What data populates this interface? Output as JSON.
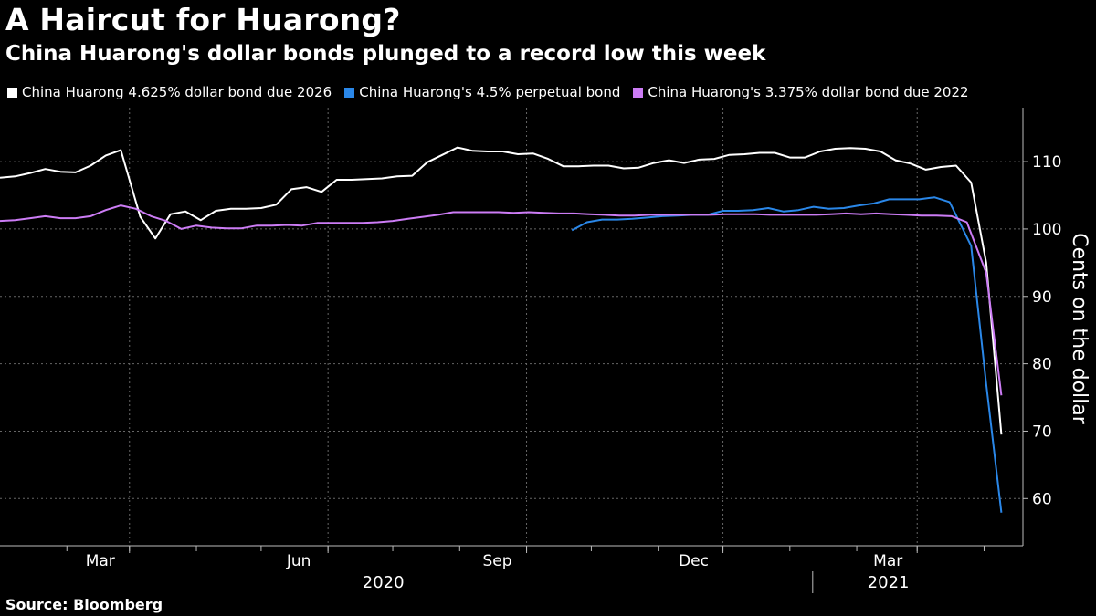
{
  "title": "A Haircut for Huarong?",
  "subtitle": "China Huarong's dollar bonds plunged to a record low this week",
  "source": "Source: Bloomberg",
  "chart_data": {
    "type": "line",
    "ylabel": "Cents on the dollar",
    "ylim": [
      53,
      118
    ],
    "yticks": [
      60,
      70,
      80,
      90,
      100,
      110
    ],
    "xlim": [
      "2020-01-01",
      "2021-04-19"
    ],
    "grid": true,
    "legend_position": "top-left",
    "x_ticks": [
      {
        "label": "Mar",
        "date": "2020-03-01"
      },
      {
        "label": "Jun",
        "date": "2020-06-01"
      },
      {
        "label": "Sep",
        "date": "2020-09-01"
      },
      {
        "label": "Dec",
        "date": "2020-12-01"
      },
      {
        "label": "Mar",
        "date": "2021-03-01"
      }
    ],
    "year_labels": [
      {
        "label": "2020",
        "date": "2020-06-30"
      },
      {
        "label": "2021",
        "date": "2021-02-19"
      }
    ],
    "series": [
      {
        "name": "China Huarong 4.625% dollar bond due 2026",
        "color": "#ffffff",
        "points": [
          [
            "2020-01-01",
            107.6
          ],
          [
            "2020-01-08",
            107.8
          ],
          [
            "2020-01-15",
            108.3
          ],
          [
            "2020-01-22",
            108.9
          ],
          [
            "2020-01-29",
            108.5
          ],
          [
            "2020-02-05",
            108.4
          ],
          [
            "2020-02-12",
            109.4
          ],
          [
            "2020-02-19",
            110.9
          ],
          [
            "2020-02-26",
            111.7
          ],
          [
            "2020-03-06",
            101.8
          ],
          [
            "2020-03-13",
            98.6
          ],
          [
            "2020-03-20",
            102.2
          ],
          [
            "2020-03-27",
            102.6
          ],
          [
            "2020-04-03",
            101.3
          ],
          [
            "2020-04-10",
            102.7
          ],
          [
            "2020-04-17",
            103.0
          ],
          [
            "2020-04-24",
            103.0
          ],
          [
            "2020-05-01",
            103.1
          ],
          [
            "2020-05-08",
            103.6
          ],
          [
            "2020-05-15",
            105.9
          ],
          [
            "2020-05-22",
            106.2
          ],
          [
            "2020-05-29",
            105.5
          ],
          [
            "2020-06-05",
            107.3
          ],
          [
            "2020-06-12",
            107.3
          ],
          [
            "2020-06-19",
            107.4
          ],
          [
            "2020-06-26",
            107.5
          ],
          [
            "2020-07-03",
            107.8
          ],
          [
            "2020-07-10",
            107.9
          ],
          [
            "2020-07-17",
            109.9
          ],
          [
            "2020-07-24",
            111.0
          ],
          [
            "2020-07-31",
            112.1
          ],
          [
            "2020-08-07",
            111.6
          ],
          [
            "2020-08-14",
            111.5
          ],
          [
            "2020-08-21",
            111.5
          ],
          [
            "2020-08-28",
            111.1
          ],
          [
            "2020-09-04",
            111.2
          ],
          [
            "2020-09-11",
            110.4
          ],
          [
            "2020-09-18",
            109.3
          ],
          [
            "2020-09-25",
            109.3
          ],
          [
            "2020-10-02",
            109.4
          ],
          [
            "2020-10-09",
            109.4
          ],
          [
            "2020-10-16",
            109.0
          ],
          [
            "2020-10-23",
            109.1
          ],
          [
            "2020-10-30",
            109.8
          ],
          [
            "2020-11-06",
            110.2
          ],
          [
            "2020-11-13",
            109.8
          ],
          [
            "2020-11-20",
            110.3
          ],
          [
            "2020-11-27",
            110.4
          ],
          [
            "2020-12-04",
            111.0
          ],
          [
            "2020-12-11",
            111.1
          ],
          [
            "2020-12-18",
            111.3
          ],
          [
            "2020-12-25",
            111.3
          ],
          [
            "2021-01-01",
            110.6
          ],
          [
            "2021-01-08",
            110.6
          ],
          [
            "2021-01-15",
            111.5
          ],
          [
            "2021-01-22",
            111.9
          ],
          [
            "2021-01-29",
            112.0
          ],
          [
            "2021-02-05",
            111.9
          ],
          [
            "2021-02-12",
            111.5
          ],
          [
            "2021-02-19",
            110.2
          ],
          [
            "2021-02-26",
            109.7
          ],
          [
            "2021-03-05",
            108.8
          ],
          [
            "2021-03-12",
            109.2
          ],
          [
            "2021-03-19",
            109.4
          ],
          [
            "2021-03-26",
            106.9
          ],
          [
            "2021-04-02",
            95.0
          ],
          [
            "2021-04-09",
            69.5
          ]
        ]
      },
      {
        "name": "China Huarong's 4.5% perpetual bond",
        "color": "#2a87e8",
        "points": [
          [
            "2020-09-22",
            99.8
          ],
          [
            "2020-09-29",
            101.0
          ],
          [
            "2020-10-06",
            101.4
          ],
          [
            "2020-10-13",
            101.4
          ],
          [
            "2020-10-20",
            101.5
          ],
          [
            "2020-10-27",
            101.7
          ],
          [
            "2020-11-03",
            101.9
          ],
          [
            "2020-11-10",
            102.0
          ],
          [
            "2020-11-17",
            102.1
          ],
          [
            "2020-11-24",
            102.1
          ],
          [
            "2020-12-01",
            102.7
          ],
          [
            "2020-12-08",
            102.7
          ],
          [
            "2020-12-15",
            102.8
          ],
          [
            "2020-12-22",
            103.1
          ],
          [
            "2020-12-29",
            102.6
          ],
          [
            "2021-01-05",
            102.8
          ],
          [
            "2021-01-12",
            103.3
          ],
          [
            "2021-01-19",
            103.0
          ],
          [
            "2021-01-26",
            103.1
          ],
          [
            "2021-02-02",
            103.5
          ],
          [
            "2021-02-09",
            103.8
          ],
          [
            "2021-02-16",
            104.4
          ],
          [
            "2021-02-23",
            104.4
          ],
          [
            "2021-03-02",
            104.4
          ],
          [
            "2021-03-09",
            104.7
          ],
          [
            "2021-03-16",
            104.0
          ],
          [
            "2021-03-26",
            97.5
          ],
          [
            "2021-04-02",
            77.0
          ],
          [
            "2021-04-09",
            57.9
          ]
        ]
      },
      {
        "name": "China Huarong's 3.375% dollar bond due 2022",
        "color": "#cc7cf5",
        "points": [
          [
            "2020-01-01",
            101.2
          ],
          [
            "2020-01-08",
            101.3
          ],
          [
            "2020-01-15",
            101.6
          ],
          [
            "2020-01-22",
            101.9
          ],
          [
            "2020-01-29",
            101.6
          ],
          [
            "2020-02-05",
            101.6
          ],
          [
            "2020-02-12",
            101.9
          ],
          [
            "2020-02-19",
            102.8
          ],
          [
            "2020-02-26",
            103.5
          ],
          [
            "2020-03-04",
            103.0
          ],
          [
            "2020-03-11",
            101.9
          ],
          [
            "2020-03-18",
            101.2
          ],
          [
            "2020-03-25",
            100.0
          ],
          [
            "2020-04-01",
            100.5
          ],
          [
            "2020-04-08",
            100.2
          ],
          [
            "2020-04-15",
            100.1
          ],
          [
            "2020-04-22",
            100.1
          ],
          [
            "2020-04-29",
            100.5
          ],
          [
            "2020-05-06",
            100.5
          ],
          [
            "2020-05-13",
            100.6
          ],
          [
            "2020-05-20",
            100.5
          ],
          [
            "2020-05-27",
            100.9
          ],
          [
            "2020-06-03",
            100.9
          ],
          [
            "2020-06-10",
            100.9
          ],
          [
            "2020-06-17",
            100.9
          ],
          [
            "2020-06-24",
            101.0
          ],
          [
            "2020-07-01",
            101.2
          ],
          [
            "2020-07-08",
            101.5
          ],
          [
            "2020-07-15",
            101.8
          ],
          [
            "2020-07-22",
            102.1
          ],
          [
            "2020-07-29",
            102.5
          ],
          [
            "2020-08-05",
            102.5
          ],
          [
            "2020-08-12",
            102.5
          ],
          [
            "2020-08-19",
            102.5
          ],
          [
            "2020-08-26",
            102.4
          ],
          [
            "2020-09-02",
            102.5
          ],
          [
            "2020-09-09",
            102.4
          ],
          [
            "2020-09-16",
            102.3
          ],
          [
            "2020-09-23",
            102.3
          ],
          [
            "2020-09-30",
            102.2
          ],
          [
            "2020-10-07",
            102.1
          ],
          [
            "2020-10-14",
            102.0
          ],
          [
            "2020-10-21",
            102.0
          ],
          [
            "2020-10-28",
            102.1
          ],
          [
            "2020-11-04",
            102.1
          ],
          [
            "2020-11-11",
            102.1
          ],
          [
            "2020-11-18",
            102.1
          ],
          [
            "2020-11-25",
            102.1
          ],
          [
            "2020-12-02",
            102.2
          ],
          [
            "2020-12-09",
            102.2
          ],
          [
            "2020-12-16",
            102.2
          ],
          [
            "2020-12-23",
            102.1
          ],
          [
            "2020-12-30",
            102.1
          ],
          [
            "2021-01-06",
            102.1
          ],
          [
            "2021-01-13",
            102.1
          ],
          [
            "2021-01-20",
            102.2
          ],
          [
            "2021-01-27",
            102.3
          ],
          [
            "2021-02-03",
            102.2
          ],
          [
            "2021-02-10",
            102.3
          ],
          [
            "2021-02-17",
            102.2
          ],
          [
            "2021-02-24",
            102.1
          ],
          [
            "2021-03-03",
            102.0
          ],
          [
            "2021-03-10",
            102.0
          ],
          [
            "2021-03-17",
            101.9
          ],
          [
            "2021-03-24",
            101.0
          ],
          [
            "2021-04-02",
            93.5
          ],
          [
            "2021-04-09",
            75.3
          ]
        ]
      }
    ]
  }
}
